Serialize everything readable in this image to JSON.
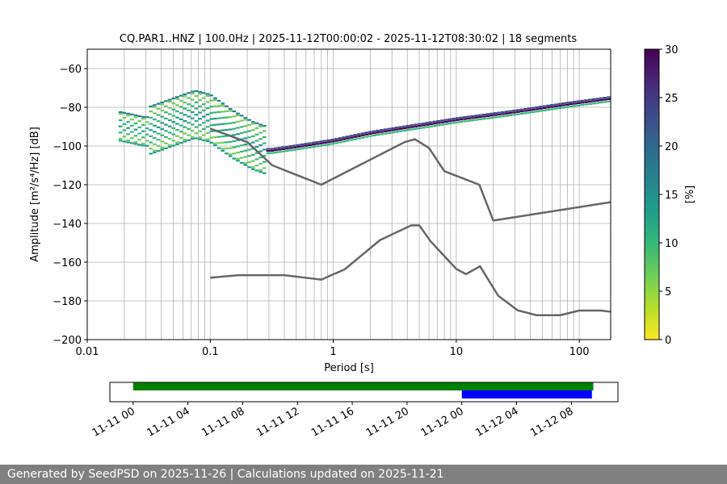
{
  "chart_data": [
    {
      "type": "heatmap",
      "title": "CQ.PAR1..HNZ | 100.0Hz | 2025-11-12T00:00:02 - 2025-11-12T08:30:02 | 18 segments",
      "xlabel": "Period [s]",
      "ylabel": "Amplitude [m²/s⁴/Hz] [dB]",
      "x_scale": "log",
      "xlim": [
        0.01,
        180
      ],
      "ylim": [
        -200,
        -50
      ],
      "x_ticks": [
        {
          "value": 0.01,
          "label": "0.01"
        },
        {
          "value": 0.1,
          "label": "0.1"
        },
        {
          "value": 1,
          "label": "1"
        },
        {
          "value": 10,
          "label": "10"
        },
        {
          "value": 100,
          "label": "100"
        }
      ],
      "y_ticks": [
        -60,
        -80,
        -100,
        -120,
        -140,
        -160,
        -180,
        -200
      ],
      "grid": true,
      "colorbar": {
        "label": "[%]",
        "range": [
          0,
          30
        ],
        "ticks": [
          0,
          5,
          10,
          15,
          20,
          25,
          30
        ],
        "colormap": "viridis_r"
      },
      "series": [
        {
          "style": "gray-line",
          "color": "#666666",
          "points": [
            [
              0.1,
              -91
            ],
            [
              0.2,
              -98
            ],
            [
              0.32,
              -110
            ],
            [
              0.8,
              -120
            ],
            [
              3.8,
              -98
            ],
            [
              4.6,
              -96.5
            ],
            [
              6,
              -101
            ],
            [
              8,
              -113
            ],
            [
              15.4,
              -120
            ],
            [
              20,
              -138.5
            ],
            [
              180,
              -129
            ]
          ]
        },
        {
          "style": "gray-line",
          "color": "#666666",
          "points": [
            [
              0.1,
              -168
            ],
            [
              0.17,
              -166.7
            ],
            [
              0.4,
              -166.7
            ],
            [
              0.8,
              -169
            ],
            [
              1.24,
              -163.7
            ],
            [
              2.4,
              -148.6
            ],
            [
              4.3,
              -141
            ],
            [
              5,
              -141
            ],
            [
              6.2,
              -149.3
            ],
            [
              10,
              -163.5
            ],
            [
              12,
              -166.2
            ],
            [
              15.6,
              -162.1
            ],
            [
              21.9,
              -177.3
            ],
            [
              31.6,
              -184.9
            ],
            [
              45,
              -187.4
            ],
            [
              70,
              -187.4
            ],
            [
              100,
              -185
            ],
            [
              150,
              -185
            ],
            [
              180,
              -185.6
            ]
          ]
        }
      ],
      "density": {
        "ridge": [
          [
            0.018,
            -90
          ],
          [
            0.03,
            -93
          ],
          [
            0.05,
            -88
          ],
          [
            0.075,
            -84
          ],
          [
            0.1,
            -86
          ],
          [
            0.15,
            -94
          ],
          [
            0.22,
            -100
          ],
          [
            0.3,
            -103
          ],
          [
            0.5,
            -101
          ],
          [
            1,
            -98
          ],
          [
            2,
            -94
          ],
          [
            5,
            -90
          ],
          [
            10,
            -87
          ],
          [
            30,
            -83
          ],
          [
            80,
            -79
          ],
          [
            180,
            -76
          ]
        ]
      }
    },
    {
      "type": "timeline",
      "x_ticks": [
        "11-11 00",
        "11-11 04",
        "11-11 08",
        "11-11 12",
        "11-11 16",
        "11-11 20",
        "11-12 00",
        "11-12 04",
        "11-12 08"
      ],
      "tick_hours": [
        0,
        4,
        8,
        12,
        16,
        20,
        24,
        28,
        32
      ],
      "xlim_hours": [
        -1.7,
        35.4
      ],
      "bars": [
        {
          "start_hour": 0,
          "end_hour": 33.6,
          "color": "#008000",
          "row": "top"
        },
        {
          "start_hour": 24,
          "end_hour": 33.5,
          "color": "#0000ff",
          "row": "bottom"
        }
      ]
    }
  ],
  "footer": "Generated by SeedPSD on 2025-11-26 | Calculations updated on 2025-11-21"
}
